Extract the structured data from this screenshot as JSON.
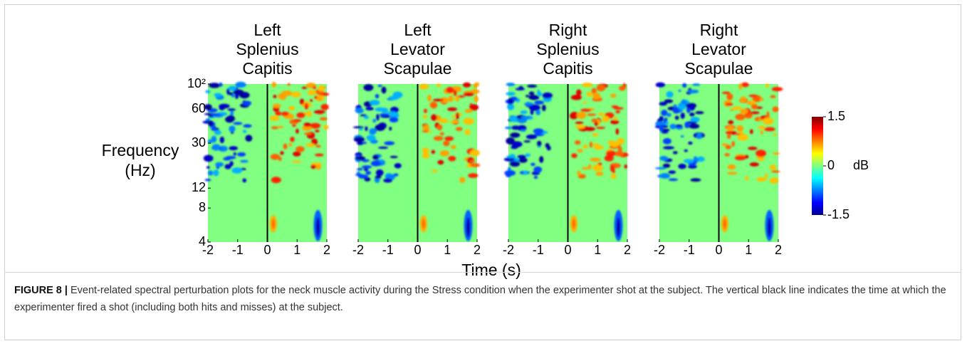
{
  "figure": {
    "panels": [
      {
        "title": [
          "Left",
          "Splenius",
          "Capitis"
        ]
      },
      {
        "title": [
          "Left",
          "Levator",
          "Scapulae"
        ]
      },
      {
        "title": [
          "Right",
          "Splenius",
          "Capitis"
        ]
      },
      {
        "title": [
          "Right",
          "Levator",
          "Scapulae"
        ]
      }
    ],
    "y_label": [
      "Frequency",
      "(Hz)"
    ],
    "x_label": "Time (s)",
    "log_y": true,
    "ylim": [
      4,
      100
    ],
    "yticks": [
      4,
      8,
      12,
      30,
      60,
      {
        "value": 100,
        "label": "10²"
      }
    ],
    "xlim": [
      -2,
      2
    ],
    "xticks": [
      -2,
      -1,
      0,
      1,
      2
    ],
    "event_time": 0,
    "colorbar": {
      "lim": [
        -1.5,
        1.5
      ],
      "ticks": [
        -1.5,
        0,
        1.5
      ],
      "unit": "dB"
    },
    "caption": {
      "label": "FIGURE 8 |",
      "text": "Event-related spectral perturbation plots for the neck muscle activity during the Stress condition when the experimenter shot at the subject. The vertical black line indicates the time at which the experimenter fired a shot (including both hits and misses) at the subject."
    }
  }
}
